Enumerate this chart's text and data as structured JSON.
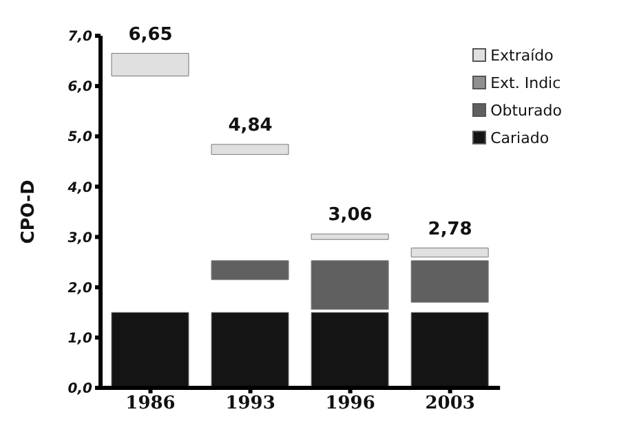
{
  "chart_data": {
    "type": "bar",
    "ylabel": "CPO-D",
    "categories": [
      "1986",
      "1993",
      "1996",
      "2003"
    ],
    "series": [
      {
        "name": "Cariado",
        "color": "#141414",
        "values": [
          1.5,
          1.5,
          1.5,
          1.5
        ],
        "base": [
          0,
          0,
          0,
          0
        ]
      },
      {
        "name": "Obturado",
        "color": "#606060",
        "values": [
          null,
          0.38,
          0.97,
          0.83
        ],
        "base": [
          null,
          2.15,
          1.56,
          1.7
        ]
      },
      {
        "name": "Ext. Indic",
        "color": "#909090",
        "values": [
          null,
          null,
          null,
          null
        ],
        "base": [
          null,
          null,
          null,
          null
        ]
      },
      {
        "name": "Extraído",
        "color": "#e0e0e0",
        "values": [
          0.45,
          0.2,
          0.11,
          0.18
        ],
        "base": [
          6.2,
          4.64,
          2.95,
          2.6
        ]
      }
    ],
    "annotations": [
      {
        "text": "6,65",
        "x": "1986",
        "y": 6.65
      },
      {
        "text": "4,84",
        "x": "1993",
        "y": 4.84
      },
      {
        "text": "3,06",
        "x": "1996",
        "y": 3.06
      },
      {
        "text": "2,78",
        "x": "2003",
        "y": 2.78
      }
    ],
    "ylim": [
      0,
      7
    ],
    "yticks": [
      {
        "value": 0,
        "label": "0,0"
      },
      {
        "value": 1,
        "label": "1,0"
      },
      {
        "value": 2,
        "label": "2,0"
      },
      {
        "value": 3,
        "label": "3,0"
      },
      {
        "value": 4,
        "label": "4,0"
      },
      {
        "value": 5,
        "label": "5,0"
      },
      {
        "value": 6,
        "label": "6,0"
      },
      {
        "value": 7,
        "label": "7,0"
      }
    ],
    "legend": "top right",
    "grid": false
  }
}
